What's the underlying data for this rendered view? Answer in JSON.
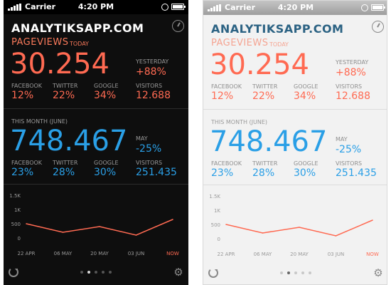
{
  "statusbar": {
    "carrier": "Carrier",
    "time": "4:20 PM"
  },
  "app": {
    "title": "ANALYTIKSAPP.COM"
  },
  "today": {
    "label": "PAGEVIEWS",
    "sublabel": "TODAY",
    "value": "30.254",
    "compare_label": "YESTERDAY",
    "compare_value": "+88%",
    "stats": [
      {
        "label": "FACEBOOK",
        "value": "12%"
      },
      {
        "label": "TWITTER",
        "value": "22%"
      },
      {
        "label": "GOOGLE",
        "value": "34%"
      },
      {
        "label": "VISITORS",
        "value": "12.688"
      }
    ]
  },
  "month": {
    "label": "THIS MONTH (JUNE)",
    "value": "748.467",
    "compare_label": "MAY",
    "compare_value": "-25%",
    "stats": [
      {
        "label": "FACEBOOK",
        "value": "23%"
      },
      {
        "label": "TWITTER",
        "value": "28%"
      },
      {
        "label": "GOOGLE",
        "value": "30%"
      },
      {
        "label": "VISITORS",
        "value": "251.435"
      }
    ]
  },
  "chart_data": {
    "type": "line",
    "y_ticks": [
      "1.5K",
      "1K",
      "500",
      "0"
    ],
    "ylim": [
      0,
      1500
    ],
    "x_ticks": [
      "22 APR",
      "06 MAY",
      "20 MAY",
      "03 JUN",
      "NOW"
    ],
    "series": [
      {
        "values": [
          {
            "x": "22 APR",
            "y": 500
          },
          {
            "x": "06 MAY",
            "y": 200
          },
          {
            "x": "20 MAY",
            "y": 400
          },
          {
            "x": "03 JUN",
            "y": 100
          },
          {
            "x": "NOW",
            "y": 650
          }
        ]
      }
    ],
    "line_color": "#ff6a52",
    "grid": false
  },
  "pager": {
    "pages": 5,
    "active": 1
  },
  "colors": {
    "accent_red": "#ff6a52",
    "accent_blue": "#2a9fe6",
    "title_light": "#2b6283"
  }
}
